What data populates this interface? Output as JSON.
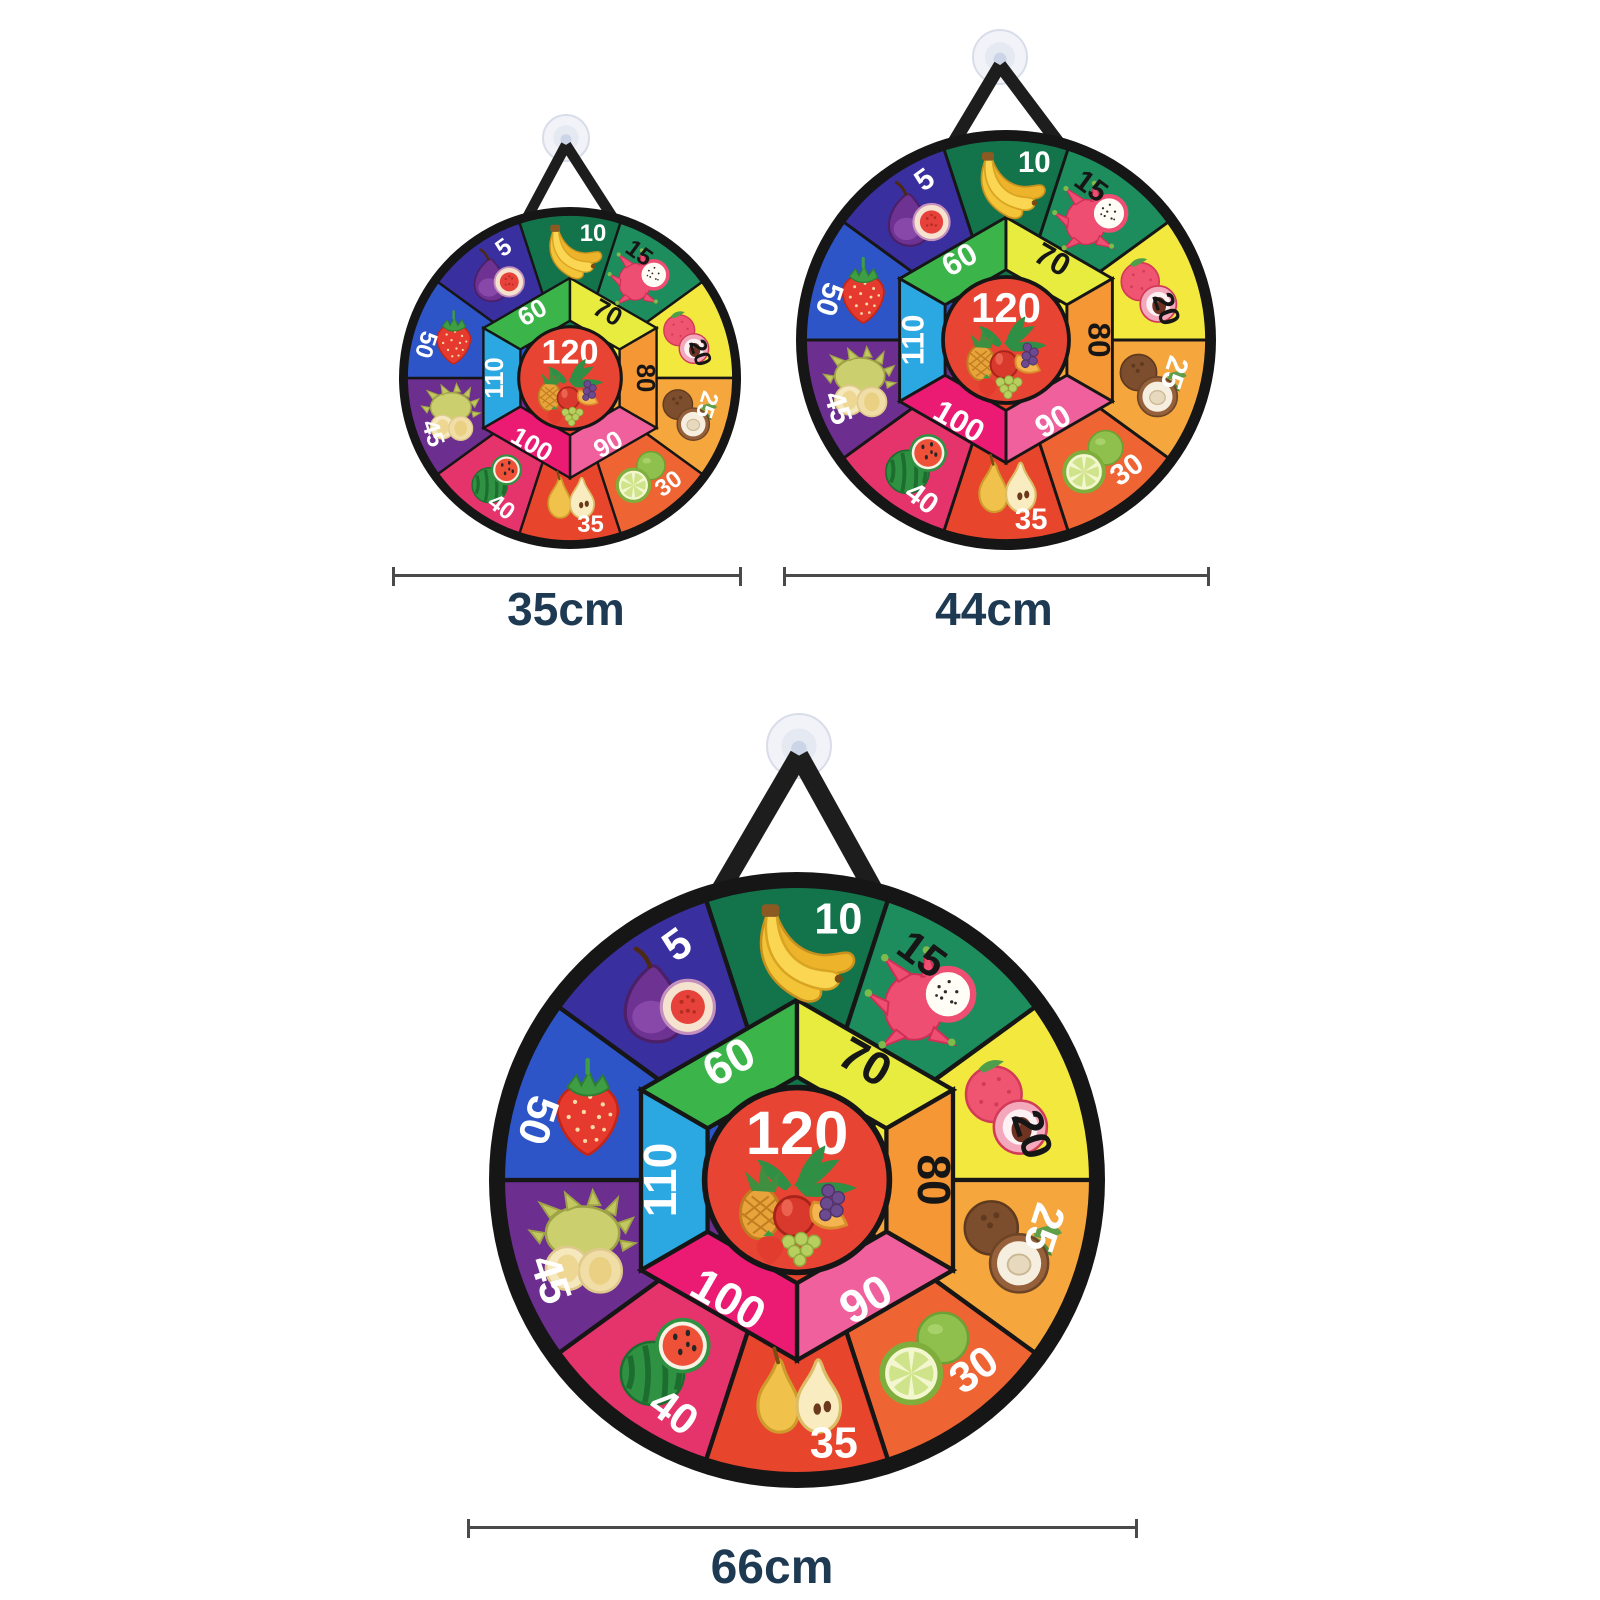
{
  "boards": [
    {
      "size_label": "35cm"
    },
    {
      "size_label": "44cm"
    },
    {
      "size_label": "66cm"
    }
  ],
  "board_design": {
    "center_value": "120",
    "center_fruit": "fruit-cluster",
    "outer_ring": [
      {
        "value": "10",
        "color": "#13744c",
        "text_color": "#ffffff",
        "fruit": "banana"
      },
      {
        "value": "15",
        "color": "#1d8d5e",
        "text_color": "#161616",
        "fruit": "dragon-fruit"
      },
      {
        "value": "20",
        "color": "#f3e83d",
        "text_color": "#161616",
        "fruit": "lychee"
      },
      {
        "value": "25",
        "color": "#f5a73d",
        "text_color": "#ffffff",
        "fruit": "coconut"
      },
      {
        "value": "30",
        "color": "#ee6433",
        "text_color": "#ffffff",
        "fruit": "lime"
      },
      {
        "value": "35",
        "color": "#e8452d",
        "text_color": "#ffffff",
        "fruit": "pear"
      },
      {
        "value": "40",
        "color": "#e5336c",
        "text_color": "#ffffff",
        "fruit": "watermelon"
      },
      {
        "value": "45",
        "color": "#6c2e8f",
        "text_color": "#ffffff",
        "fruit": "durian"
      },
      {
        "value": "50",
        "color": "#2d55c8",
        "text_color": "#ffffff",
        "fruit": "strawberry"
      },
      {
        "value": "5",
        "color": "#3a2f9e",
        "text_color": "#ffffff",
        "fruit": "fig"
      }
    ],
    "inner_ring": [
      {
        "value": "60",
        "color": "#3bb44a",
        "text_color": "#ffffff"
      },
      {
        "value": "70",
        "color": "#e7ec3e",
        "text_color": "#161616"
      },
      {
        "value": "80",
        "color": "#f49734",
        "text_color": "#161616"
      },
      {
        "value": "90",
        "color": "#f0609c",
        "text_color": "#ffffff"
      },
      {
        "value": "100",
        "color": "#eb1a72",
        "text_color": "#ffffff"
      },
      {
        "value": "110",
        "color": "#2ba7e2",
        "text_color": "#ffffff"
      }
    ],
    "colors": {
      "center": "#e74433",
      "rim": "#161616",
      "line": "#161616",
      "strap": "#1d1d1d",
      "suction_cup": "#f1f3f8",
      "background": "#ffffff",
      "dimension_text": "#1e3a52",
      "dimension_line": "#4a4a4a"
    },
    "icons": {
      "suction_cup": "suction-cup-icon",
      "strap": "hanging-strap-icon",
      "center_fruit": "fruit-cluster-icon"
    }
  }
}
